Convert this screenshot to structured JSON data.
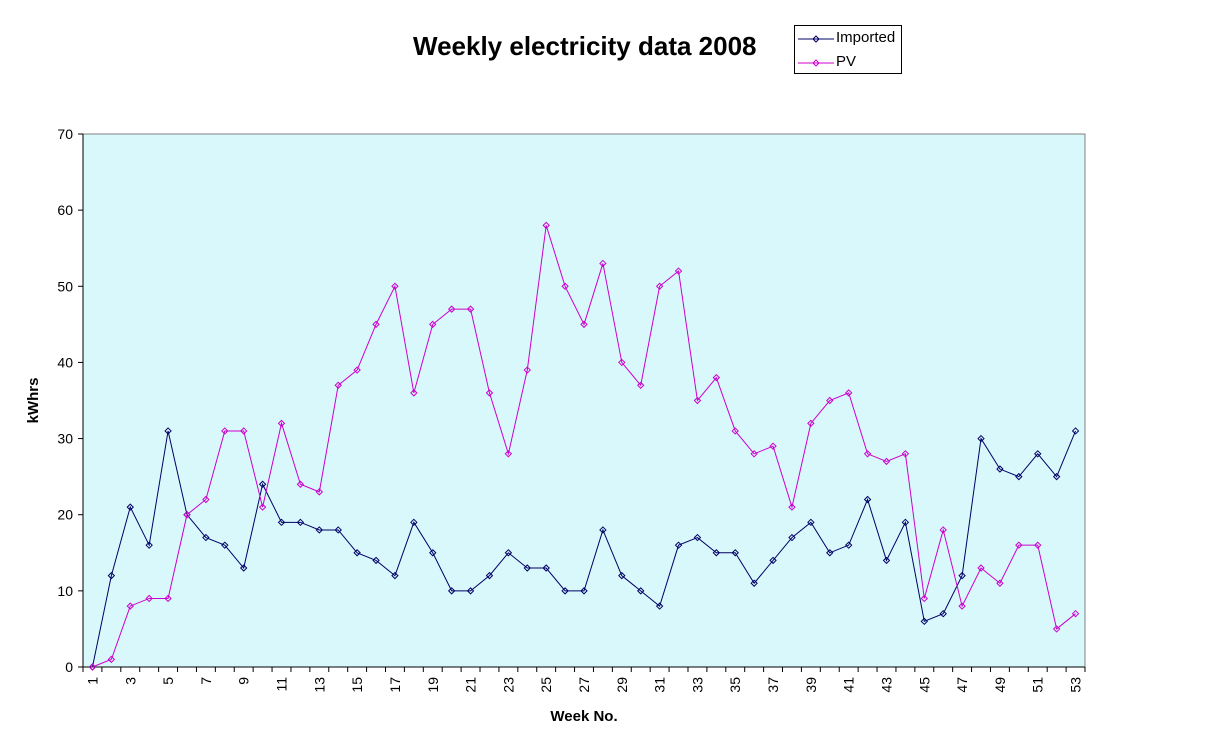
{
  "chart_data": {
    "type": "line",
    "title": "Weekly electricity data 2008",
    "xlabel": "Week No.",
    "ylabel": "kWhrs",
    "ylim": [
      0,
      70
    ],
    "yticks": [
      0,
      10,
      20,
      30,
      40,
      50,
      60,
      70
    ],
    "x": [
      1,
      2,
      3,
      4,
      5,
      6,
      7,
      8,
      9,
      10,
      11,
      12,
      13,
      14,
      15,
      16,
      17,
      18,
      19,
      20,
      21,
      22,
      23,
      24,
      25,
      26,
      27,
      28,
      29,
      30,
      31,
      32,
      33,
      34,
      35,
      36,
      37,
      38,
      39,
      40,
      41,
      42,
      43,
      44,
      45,
      46,
      47,
      48,
      49,
      50,
      51,
      52,
      53
    ],
    "xtick_labels": [
      "1",
      "3",
      "5",
      "7",
      "9",
      "11",
      "13",
      "15",
      "17",
      "19",
      "21",
      "23",
      "25",
      "27",
      "29",
      "31",
      "33",
      "35",
      "37",
      "39",
      "41",
      "43",
      "45",
      "47",
      "49",
      "51",
      "53"
    ],
    "grid": false,
    "legend_position": "top-right",
    "plot_background": "#d9f8fb",
    "series": [
      {
        "name": "Imported",
        "color": "#000066",
        "values": [
          0,
          12,
          21,
          16,
          31,
          20,
          17,
          16,
          13,
          24,
          19,
          19,
          18,
          18,
          15,
          14,
          12,
          19,
          15,
          10,
          10,
          12,
          15,
          13,
          13,
          10,
          10,
          18,
          12,
          10,
          8,
          16,
          17,
          15,
          15,
          11,
          14,
          17,
          19,
          15,
          16,
          22,
          14,
          19,
          6,
          7,
          12,
          30,
          26,
          25,
          28,
          25,
          31
        ]
      },
      {
        "name": "PV",
        "color": "#cc00cc",
        "values": [
          0,
          1,
          8,
          9,
          9,
          20,
          22,
          31,
          31,
          21,
          32,
          24,
          23,
          37,
          39,
          45,
          50,
          36,
          45,
          47,
          47,
          36,
          28,
          39,
          58,
          50,
          45,
          53,
          40,
          37,
          50,
          52,
          35,
          38,
          31,
          28,
          29,
          21,
          32,
          35,
          36,
          28,
          27,
          28,
          9,
          18,
          8,
          13,
          11,
          16,
          16,
          5,
          7
        ]
      }
    ]
  }
}
